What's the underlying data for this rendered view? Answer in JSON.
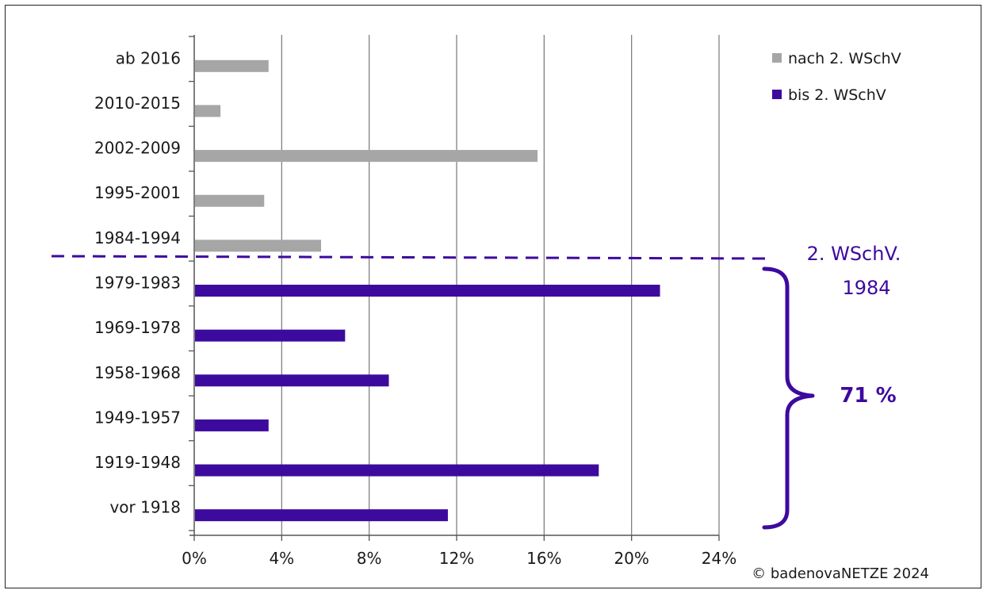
{
  "chart_data": {
    "type": "bar",
    "orientation": "horizontal",
    "categories": [
      "ab 2016",
      "2010-2015",
      "2002-2009",
      "1995-2001",
      "1984-1994",
      "1979-1983",
      "1969-1978",
      "1958-1968",
      "1949-1957",
      "1919-1948",
      "vor 1918"
    ],
    "series": [
      {
        "name": "nach 2. WSchV",
        "color": "#a6a6a6",
        "values": [
          3.4,
          1.2,
          15.7,
          3.2,
          5.8,
          null,
          null,
          null,
          null,
          null,
          null
        ]
      },
      {
        "name": "bis 2. WSchV",
        "color": "#3d0a9e",
        "values": [
          null,
          null,
          null,
          null,
          null,
          21.3,
          6.9,
          8.9,
          3.4,
          18.5,
          11.6
        ]
      }
    ],
    "xlim": [
      0,
      24
    ],
    "xticks": [
      0,
      4,
      8,
      12,
      16,
      20,
      24
    ],
    "xtick_labels": [
      "0%",
      "4%",
      "8%",
      "12%",
      "16%",
      "20%",
      "24%"
    ],
    "grid": "vertical",
    "legend_position": "top-right",
    "title": "",
    "xlabel": "",
    "ylabel": "",
    "annotations": {
      "divider_label_line1": "2. WSchV.",
      "divider_label_line2": "1984",
      "bracket_label": "71 %",
      "copyright": "© badenovaNETZE 2024"
    },
    "annotation_color": "#3d0a9e"
  }
}
